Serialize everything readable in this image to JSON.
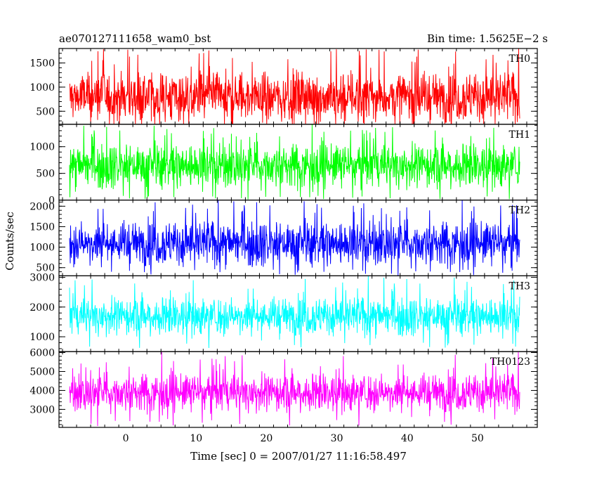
{
  "chart_data": {
    "type": "line",
    "title": "ae070127111658_wam0_bst",
    "subtitle": "Bin time: 1.5625E−2 s",
    "xlabel": "Time [sec] 0 = 2007/01/27 11:16:58.497",
    "ylabel": "Counts/sec",
    "xlim": [
      -9.5,
      58.5
    ],
    "x_ticks": [
      0,
      10,
      20,
      30,
      40,
      50
    ],
    "x_tick_labels": [
      "0",
      "10",
      "20",
      "30",
      "40",
      "50"
    ],
    "data_x_range": [
      -8.0,
      56.0
    ],
    "panels": [
      {
        "name": "TH0",
        "color": "#ff0000",
        "ylim": [
          230,
          1800
        ],
        "ticks": [
          500,
          1000,
          1500
        ],
        "tick_labels": [
          "500",
          "1000",
          "1500"
        ],
        "center": 800,
        "low_edge": 110,
        "high_edge": 1450,
        "max_spike": 1800,
        "min_spike": 230
      },
      {
        "name": "TH1",
        "color": "#00ff00",
        "ylim": [
          0,
          1420
        ],
        "ticks": [
          0,
          500,
          1000
        ],
        "tick_labels": [
          "0",
          "500",
          "1000"
        ],
        "center": 650,
        "low_edge": 80,
        "high_edge": 1150,
        "max_spike": 1420,
        "min_spike": 10
      },
      {
        "name": "TH2",
        "color": "#0000ff",
        "ylim": [
          300,
          2150
        ],
        "ticks": [
          500,
          1000,
          1500,
          2000
        ],
        "tick_labels": [
          "500",
          "1000",
          "1500",
          "2000"
        ],
        "center": 1100,
        "low_edge": 450,
        "high_edge": 1850,
        "max_spike": 2150,
        "min_spike": 300
      },
      {
        "name": "TH3",
        "color": "#00ffff",
        "ylim": [
          500,
          3050
        ],
        "ticks": [
          1000,
          2000,
          3000
        ],
        "tick_labels": [
          "1000",
          "2000",
          "3000"
        ],
        "center": 1700,
        "low_edge": 800,
        "high_edge": 2450,
        "max_spike": 3050,
        "min_spike": 600
      },
      {
        "name": "TH0123",
        "color": "#ff00ff",
        "ylim": [
          2050,
          6050
        ],
        "ticks": [
          3000,
          4000,
          5000,
          6000
        ],
        "tick_labels": [
          "3000",
          "4000",
          "5000",
          "6000"
        ],
        "center": 3900,
        "low_edge": 2500,
        "high_edge": 5100,
        "max_spike": 6050,
        "min_spike": 2100
      }
    ],
    "grid": false,
    "legend": "none"
  }
}
